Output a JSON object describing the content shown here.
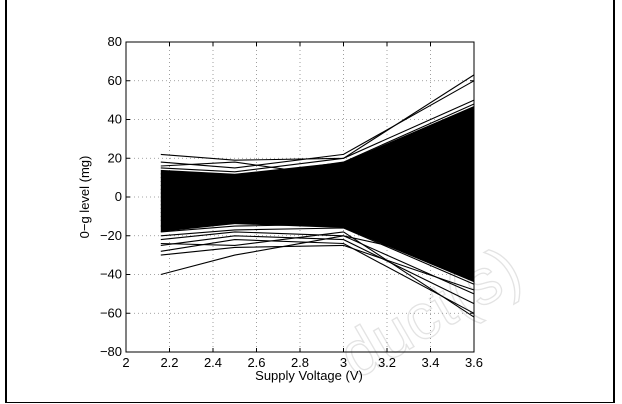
{
  "watermark": "duct(s)",
  "chart_data": {
    "type": "line",
    "title": "",
    "xlabel": "Supply Voltage (V)",
    "ylabel": "0−g level (mg)",
    "xlim": [
      2,
      3.6
    ],
    "ylim": [
      -80,
      80
    ],
    "xticks": [
      2,
      2.2,
      2.4,
      2.6,
      2.8,
      3,
      3.2,
      3.4,
      3.6
    ],
    "xtick_labels": [
      "2",
      "2.2",
      "2.4",
      "2.6",
      "2.8",
      "3",
      "3.2",
      "3.4",
      "3.6"
    ],
    "yticks": [
      -80,
      -60,
      -40,
      -20,
      0,
      20,
      40,
      60,
      80
    ],
    "ytick_labels": [
      "−80",
      "−60",
      "−40",
      "−20",
      "0",
      "20",
      "40",
      "60",
      "80"
    ],
    "grid": true,
    "legend": "none",
    "color": "#000000",
    "x": [
      2.16,
      2.5,
      3.0,
      3.6
    ],
    "series": [
      {
        "values": [
          22,
          19,
          20,
          63
        ]
      },
      {
        "values": [
          18,
          15,
          22,
          60
        ]
      },
      {
        "values": [
          15,
          13,
          20,
          50
        ]
      },
      {
        "values": [
          12,
          10,
          18,
          48
        ]
      },
      {
        "values": [
          10,
          8,
          15,
          45
        ]
      },
      {
        "values": [
          8,
          7,
          12,
          40
        ]
      },
      {
        "values": [
          16,
          18,
          10,
          35
        ]
      },
      {
        "values": [
          6,
          5,
          8,
          30
        ]
      },
      {
        "values": [
          4,
          3,
          5,
          25
        ]
      },
      {
        "values": [
          2,
          2,
          3,
          20
        ]
      },
      {
        "values": [
          0,
          0,
          2,
          12
        ]
      },
      {
        "values": [
          -2,
          -1,
          0,
          5
        ]
      },
      {
        "values": [
          -4,
          -3,
          -2,
          -5
        ]
      },
      {
        "values": [
          -6,
          -5,
          -4,
          -12
        ]
      },
      {
        "values": [
          -8,
          -7,
          -6,
          -20
        ]
      },
      {
        "values": [
          -10,
          -9,
          -8,
          -25
        ]
      },
      {
        "values": [
          -12,
          -11,
          -10,
          -30
        ]
      },
      {
        "values": [
          -15,
          -13,
          -12,
          -35
        ]
      },
      {
        "values": [
          -18,
          -15,
          -14,
          -40
        ]
      },
      {
        "values": [
          -20,
          -17,
          -16,
          -45
        ]
      },
      {
        "values": [
          -22,
          -18,
          -20,
          -50
        ]
      },
      {
        "values": [
          -25,
          -20,
          -22,
          -55
        ]
      },
      {
        "values": [
          -28,
          -22,
          -24,
          -60
        ]
      },
      {
        "values": [
          -40,
          -30,
          -20,
          -35
        ]
      },
      {
        "values": [
          -24,
          -25,
          -18,
          -62
        ]
      },
      {
        "values": [
          -30,
          -26,
          -25,
          -48
        ]
      }
    ]
  }
}
